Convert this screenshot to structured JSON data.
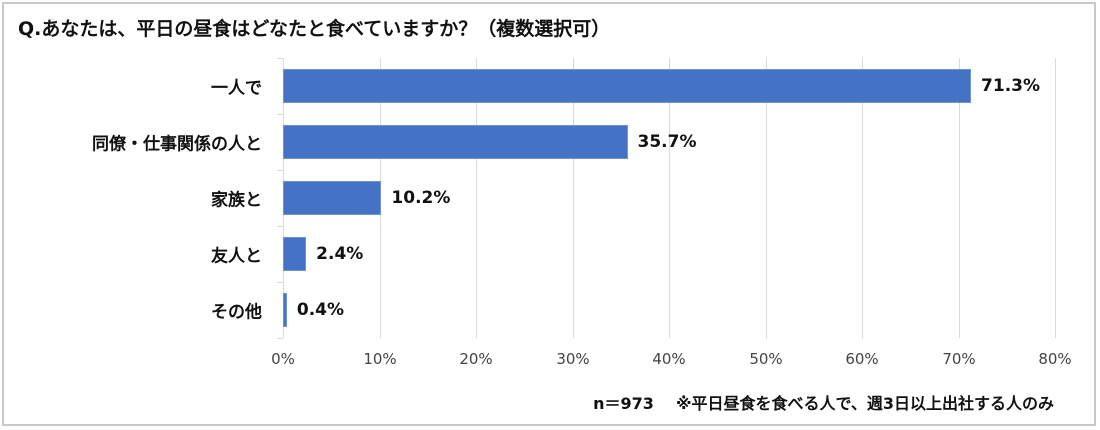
{
  "title": "Q.あなたは、平日の昼食はどなたと食べていますか？（複数選択可）",
  "note": {
    "sample": "n＝973",
    "condition": "※平日昼食を食べる人で、週3日以上出社する人のみ"
  },
  "colors": {
    "bar": "#4472c4",
    "grid": "#d9d9d9",
    "text": "#111111"
  },
  "chart_data": {
    "type": "bar",
    "orientation": "horizontal",
    "title": "Q.あなたは、平日の昼食はどなたと食べていますか？（複数選択可）",
    "categories": [
      "一人で",
      "同僚・仕事関係の人と",
      "家族と",
      "友人と",
      "その他"
    ],
    "values": [
      71.3,
      35.7,
      10.2,
      2.4,
      0.4
    ],
    "value_labels": [
      "71.3%",
      "35.7%",
      "10.2%",
      "2.4%",
      "0.4%"
    ],
    "xlabel": "",
    "ylabel": "",
    "xlim": [
      0,
      80
    ],
    "x_ticks": [
      "0%",
      "10%",
      "20%",
      "30%",
      "40%",
      "50%",
      "60%",
      "70%",
      "80%"
    ],
    "grid": "vertical",
    "legend": "none",
    "annotation": "n＝973　※平日昼食を食べる人で、週3日以上出社する人のみ"
  }
}
